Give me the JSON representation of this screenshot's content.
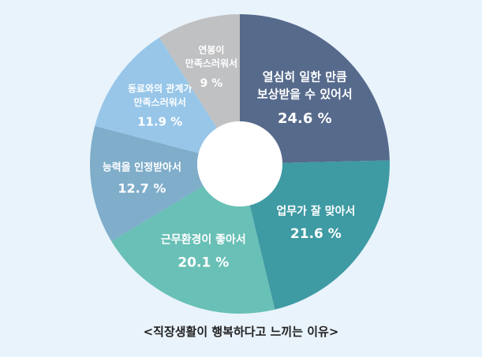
{
  "chart_data": {
    "type": "pie",
    "title": "<직장생활이 행복하다고 느끼는 이유>",
    "slices": [
      {
        "label_lines": [
          "열심히 일한 만큼",
          "보상받을 수 있어서"
        ],
        "value": 24.6,
        "value_text": "24.6 %",
        "color": "#566a8c"
      },
      {
        "label_lines": [
          "업무가 잘 맞아서"
        ],
        "value": 21.6,
        "value_text": "21.6 %",
        "color": "#3e9aa3"
      },
      {
        "label_lines": [
          "근무환경이 좋아서"
        ],
        "value": 20.1,
        "value_text": "20.1 %",
        "color": "#69c0b6"
      },
      {
        "label_lines": [
          "능력을 인정받아서"
        ],
        "value": 12.7,
        "value_text": "12.7 %",
        "color": "#7fadca"
      },
      {
        "label_lines": [
          "동료와의 관계가",
          "만족스러워서"
        ],
        "value": 11.9,
        "value_text": "11.9 %",
        "color": "#97c6e9"
      },
      {
        "label_lines": [
          "연봉이",
          "만족스러워서"
        ],
        "value": 9,
        "value_text": "9 %",
        "color": "#c0c1c3"
      }
    ]
  }
}
